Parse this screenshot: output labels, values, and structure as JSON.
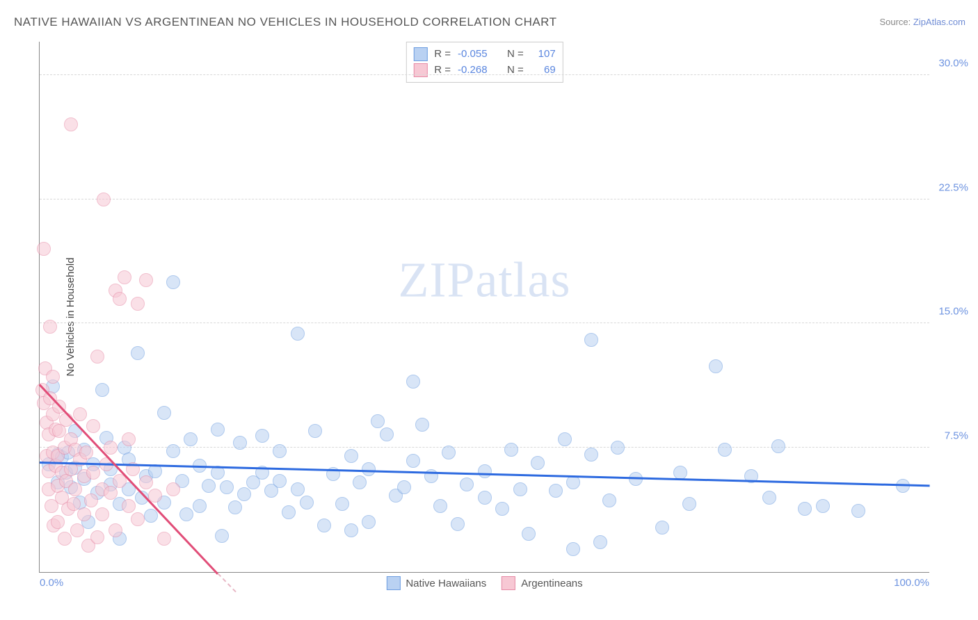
{
  "title": "NATIVE HAWAIIAN VS ARGENTINEAN NO VEHICLES IN HOUSEHOLD CORRELATION CHART",
  "source_prefix": "Source: ",
  "source_link": "ZipAtlas.com",
  "ylabel": "No Vehicles in Household",
  "watermark_a": "ZIP",
  "watermark_b": "atlas",
  "chart": {
    "type": "scatter",
    "xlim": [
      0,
      100
    ],
    "ylim": [
      0,
      32
    ],
    "xtick_labels": [
      {
        "pos": 0,
        "label": "0.0%"
      },
      {
        "pos": 100,
        "label": "100.0%"
      }
    ],
    "yticks": [
      7.5,
      15.0,
      22.5,
      30.0
    ],
    "ytick_fmt": "%",
    "grid_color": "#d8d8d8",
    "axis_color": "#888888",
    "tick_label_color": "#6d93e0",
    "marker_radius": 10,
    "series": [
      {
        "name": "Native Hawaiians",
        "fill": "#b9d1f2",
        "stroke": "#6d9de0",
        "R": "-0.055",
        "N": "107",
        "trend": {
          "x1": 0,
          "y1": 6.7,
          "x2": 100,
          "y2": 5.3,
          "color": "#2d6ae0",
          "solid": true
        },
        "points": [
          [
            1,
            6.5
          ],
          [
            1.5,
            11.2
          ],
          [
            2,
            7.1
          ],
          [
            2,
            5.4
          ],
          [
            2.5,
            6.9
          ],
          [
            3,
            6.0
          ],
          [
            3.2,
            7.2
          ],
          [
            3.5,
            5.1
          ],
          [
            4,
            6.3
          ],
          [
            4,
            8.5
          ],
          [
            4.5,
            4.2
          ],
          [
            5,
            5.6
          ],
          [
            5,
            7.4
          ],
          [
            5.5,
            3.0
          ],
          [
            6,
            6.5
          ],
          [
            6.5,
            4.8
          ],
          [
            7,
            11.0
          ],
          [
            7.5,
            8.1
          ],
          [
            8,
            5.3
          ],
          [
            8,
            6.2
          ],
          [
            9,
            2.0
          ],
          [
            9,
            4.1
          ],
          [
            9.5,
            7.5
          ],
          [
            10,
            6.8
          ],
          [
            10,
            5.0
          ],
          [
            11,
            13.2
          ],
          [
            11.5,
            4.5
          ],
          [
            12,
            5.8
          ],
          [
            12.5,
            3.4
          ],
          [
            13,
            6.1
          ],
          [
            14,
            9.6
          ],
          [
            14,
            4.2
          ],
          [
            15,
            17.5
          ],
          [
            15,
            7.3
          ],
          [
            16,
            5.5
          ],
          [
            16.5,
            3.5
          ],
          [
            17,
            8.0
          ],
          [
            18,
            6.4
          ],
          [
            18,
            4.0
          ],
          [
            19,
            5.2
          ],
          [
            20,
            8.6
          ],
          [
            20,
            6.0
          ],
          [
            20.5,
            2.2
          ],
          [
            21,
            5.1
          ],
          [
            22,
            3.9
          ],
          [
            22.5,
            7.8
          ],
          [
            23,
            4.7
          ],
          [
            24,
            5.4
          ],
          [
            25,
            8.2
          ],
          [
            25,
            6.0
          ],
          [
            26,
            4.9
          ],
          [
            27,
            7.3
          ],
          [
            27,
            5.5
          ],
          [
            28,
            3.6
          ],
          [
            29,
            14.4
          ],
          [
            29,
            5.0
          ],
          [
            30,
            4.2
          ],
          [
            31,
            8.5
          ],
          [
            32,
            2.8
          ],
          [
            33,
            5.9
          ],
          [
            34,
            4.1
          ],
          [
            35,
            7.0
          ],
          [
            35,
            2.5
          ],
          [
            36,
            5.4
          ],
          [
            37,
            6.2
          ],
          [
            37,
            3.0
          ],
          [
            38,
            9.1
          ],
          [
            39,
            8.3
          ],
          [
            40,
            4.6
          ],
          [
            41,
            5.1
          ],
          [
            42,
            11.5
          ],
          [
            42,
            6.7
          ],
          [
            43,
            8.9
          ],
          [
            44,
            5.8
          ],
          [
            45,
            4.0
          ],
          [
            46,
            7.2
          ],
          [
            47,
            2.9
          ],
          [
            48,
            5.3
          ],
          [
            50,
            6.1
          ],
          [
            50,
            4.5
          ],
          [
            52,
            3.8
          ],
          [
            53,
            7.4
          ],
          [
            54,
            5.0
          ],
          [
            55,
            2.3
          ],
          [
            56,
            6.6
          ],
          [
            58,
            4.9
          ],
          [
            59,
            8.0
          ],
          [
            60,
            5.4
          ],
          [
            60,
            1.4
          ],
          [
            62,
            7.1
          ],
          [
            63,
            1.8
          ],
          [
            64,
            4.3
          ],
          [
            65,
            7.5
          ],
          [
            67,
            5.6
          ],
          [
            70,
            2.7
          ],
          [
            72,
            6.0
          ],
          [
            73,
            4.1
          ],
          [
            76,
            12.4
          ],
          [
            77,
            7.4
          ],
          [
            80,
            5.8
          ],
          [
            82,
            4.5
          ],
          [
            83,
            7.6
          ],
          [
            86,
            3.8
          ],
          [
            88,
            4.0
          ],
          [
            92,
            3.7
          ],
          [
            97,
            5.2
          ],
          [
            62,
            14.0
          ]
        ]
      },
      {
        "name": "Argentineans",
        "fill": "#f7c8d4",
        "stroke": "#e68aa6",
        "R": "-0.268",
        "N": "69",
        "trend": {
          "x1": 0,
          "y1": 11.4,
          "x2": 20,
          "y2": 0,
          "color": "#e14d78",
          "solid": true
        },
        "trend_ext": {
          "x1": 20,
          "y1": 0,
          "x2": 22,
          "y2": -1.1,
          "color": "#e8b7c5",
          "solid": false
        },
        "points": [
          [
            0.3,
            11.0
          ],
          [
            0.5,
            10.2
          ],
          [
            0.5,
            19.5
          ],
          [
            0.6,
            12.3
          ],
          [
            0.8,
            7.0
          ],
          [
            0.8,
            9.0
          ],
          [
            1,
            8.3
          ],
          [
            1,
            6.1
          ],
          [
            1,
            5.0
          ],
          [
            1.2,
            10.5
          ],
          [
            1.2,
            14.8
          ],
          [
            1.3,
            4.0
          ],
          [
            1.5,
            7.2
          ],
          [
            1.5,
            9.5
          ],
          [
            1.5,
            11.8
          ],
          [
            1.6,
            2.8
          ],
          [
            1.8,
            6.4
          ],
          [
            1.8,
            8.6
          ],
          [
            2,
            3.0
          ],
          [
            2,
            5.2
          ],
          [
            2,
            7.0
          ],
          [
            2.2,
            8.5
          ],
          [
            2.2,
            10.0
          ],
          [
            2.5,
            4.5
          ],
          [
            2.5,
            6.0
          ],
          [
            2.8,
            7.5
          ],
          [
            2.8,
            2.0
          ],
          [
            3,
            9.2
          ],
          [
            3,
            5.5
          ],
          [
            3.2,
            3.8
          ],
          [
            3.5,
            6.2
          ],
          [
            3.5,
            8.0
          ],
          [
            3.5,
            27.0
          ],
          [
            3.8,
            4.1
          ],
          [
            4,
            7.4
          ],
          [
            4,
            5.0
          ],
          [
            4.2,
            2.5
          ],
          [
            4.5,
            6.8
          ],
          [
            4.5,
            9.5
          ],
          [
            5,
            3.5
          ],
          [
            5,
            5.8
          ],
          [
            5.2,
            7.2
          ],
          [
            5.5,
            1.6
          ],
          [
            5.8,
            4.3
          ],
          [
            6,
            6.0
          ],
          [
            6,
            8.8
          ],
          [
            6.5,
            2.1
          ],
          [
            6.5,
            13.0
          ],
          [
            7,
            5.0
          ],
          [
            7,
            3.5
          ],
          [
            7.2,
            22.5
          ],
          [
            7.5,
            6.5
          ],
          [
            8,
            4.8
          ],
          [
            8,
            7.5
          ],
          [
            8.5,
            17.0
          ],
          [
            8.5,
            2.5
          ],
          [
            9,
            5.5
          ],
          [
            9,
            16.5
          ],
          [
            9.5,
            17.8
          ],
          [
            10,
            4.0
          ],
          [
            10,
            8.0
          ],
          [
            10.5,
            6.2
          ],
          [
            11,
            3.2
          ],
          [
            11,
            16.2
          ],
          [
            12,
            17.6
          ],
          [
            12,
            5.4
          ],
          [
            13,
            4.6
          ],
          [
            14,
            2.0
          ],
          [
            15,
            5.0
          ]
        ]
      }
    ]
  }
}
